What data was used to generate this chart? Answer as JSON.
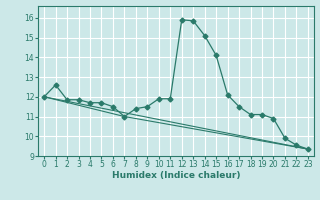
{
  "xlabel": "Humidex (Indice chaleur)",
  "bg_color": "#cce8e8",
  "grid_color": "#ffffff",
  "line_color": "#2a7a6a",
  "xlim": [
    -0.5,
    23.5
  ],
  "ylim": [
    9,
    16.6
  ],
  "yticks": [
    9,
    10,
    11,
    12,
    13,
    14,
    15,
    16
  ],
  "xticks": [
    0,
    1,
    2,
    3,
    4,
    5,
    6,
    7,
    8,
    9,
    10,
    11,
    12,
    13,
    14,
    15,
    16,
    17,
    18,
    19,
    20,
    21,
    22,
    23
  ],
  "series1_x": [
    0,
    1,
    2,
    3,
    4,
    5,
    6,
    7,
    8,
    9,
    10,
    11,
    12,
    13,
    14,
    15,
    16,
    17,
    18,
    19,
    20,
    21,
    22,
    23
  ],
  "series1_y": [
    12.0,
    12.6,
    11.85,
    11.85,
    11.7,
    11.7,
    11.5,
    11.0,
    11.4,
    11.5,
    11.9,
    11.9,
    15.9,
    15.85,
    15.1,
    14.1,
    12.1,
    11.5,
    11.1,
    11.1,
    10.9,
    9.9,
    9.55,
    9.35
  ],
  "series2_x": [
    0,
    23
  ],
  "series2_y": [
    12.0,
    9.35
  ],
  "series3_x": [
    0,
    7,
    23
  ],
  "series3_y": [
    12.0,
    11.0,
    9.35
  ],
  "tick_fontsize": 5.5,
  "xlabel_fontsize": 6.5,
  "marker_size": 2.5
}
